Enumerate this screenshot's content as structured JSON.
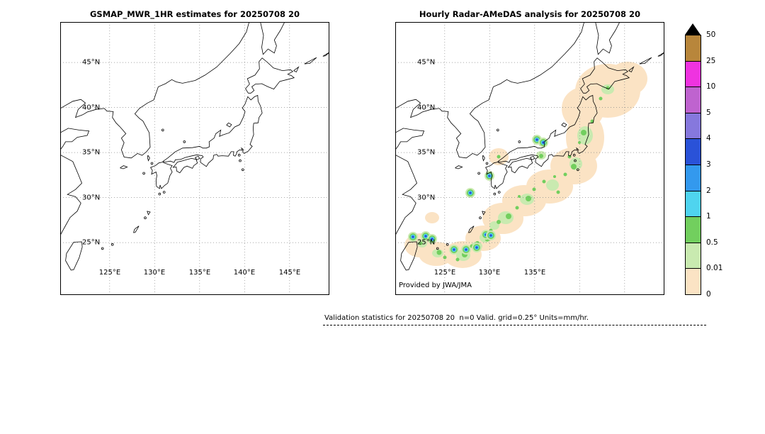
{
  "panels": [
    {
      "title": "GSMAP_MWR_1HR estimates for 20250708 20",
      "yticks": [
        "45°N",
        "40°N",
        "35°N",
        "30°N",
        "25°N"
      ],
      "xticks": [
        "125°E",
        "130°E",
        "135°E",
        "140°E",
        "145°E"
      ]
    },
    {
      "title": "Hourly Radar-AMeDAS analysis for 20250708 20",
      "yticks": [
        "45°N",
        "40°N",
        "35°N",
        "30°N",
        "25°N"
      ],
      "xticks": [
        "125°E",
        "130°E",
        "135°E"
      ],
      "credit": "Provided by JWA/JMA"
    }
  ],
  "colorbar": {
    "labels": [
      "50",
      "25",
      "10",
      "5",
      "4",
      "3",
      "2",
      "1",
      "0.5",
      "0.01",
      "0"
    ],
    "colors": [
      "#b8863b",
      "#ef33e0",
      "#bf63cf",
      "#8678dd",
      "#2a52d8",
      "#3399ee",
      "#4fd4ef",
      "#72cf5e",
      "#c9eab0",
      "#fbe3c4"
    ],
    "overflow_marker_color": "#000000"
  },
  "footer": {
    "text": "Validation statistics for 20250708 20  n=0 Valid. grid=0.25° Units=mm/hr."
  },
  "chart_data": {
    "type": "heatmap",
    "subtype": "geographic precipitation comparison maps (GrADS style)",
    "valid_datetime": "20250708 20",
    "units": "mm/hr",
    "grid_resolution_deg": 0.25,
    "n_valid_points": 0,
    "map_extent": {
      "lon": [
        119.5,
        149.5
      ],
      "lat": [
        19.5,
        49.5
      ]
    },
    "lat_gridlines_deg_n": [
      25,
      30,
      35,
      40,
      45
    ],
    "lon_gridlines_deg_e": [
      125,
      130,
      135,
      140,
      145
    ],
    "levels_mm_per_hr": [
      0,
      0.01,
      0.5,
      1,
      2,
      3,
      4,
      5,
      10,
      25,
      50
    ],
    "palette_low_to_high": [
      "#fbe3c4",
      "#c9eab0",
      "#72cf5e",
      "#4fd4ef",
      "#3399ee",
      "#2a52d8",
      "#8678dd",
      "#bf63cf",
      "#ef33e0",
      "#b8863b"
    ],
    "overflow_above_50_color": "#000000",
    "legend_position": "right",
    "grid": "dotted graticule every 5 degrees",
    "panels": [
      {
        "title": "GSMAP_MWR_1HR estimates for 20250708 20",
        "data_present": false,
        "description": "Base map of Japan, Korea and surrounding seas with no precipitation estimates plotted (n=0)."
      },
      {
        "title": "Hourly Radar-AMeDAS analysis for 20250708 20",
        "data_present": true,
        "description": "Light precipitation (0-0.5 mm/hr, peach/light-green shading) along the Japanese archipelago from eastern Hokkaido through Honshu, Shikoku, Kyushu to the Ryukyu islands, with embedded cells of 1-5 mm/hr (green/cyan/blue dots) over central Honshu, western Japan, Kyushu and around Okinawa/Sakishima islands."
      }
    ]
  }
}
